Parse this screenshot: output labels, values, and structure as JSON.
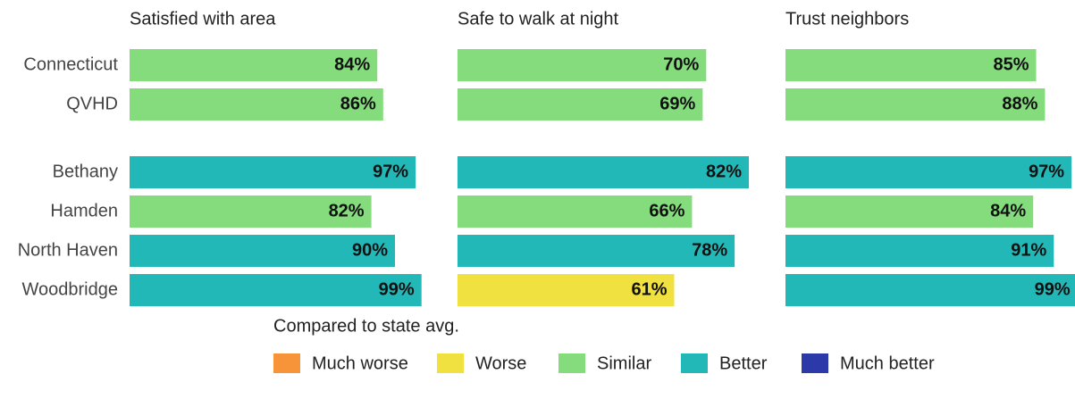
{
  "categories": [
    "Connecticut",
    "QVHD",
    "Bethany",
    "Hamden",
    "North Haven",
    "Woodbridge"
  ],
  "chart_data": [
    {
      "type": "bar",
      "title": "Satisfied with area",
      "values": [
        84,
        86,
        97,
        82,
        90,
        99
      ],
      "value_labels": [
        "84%",
        "86%",
        "97%",
        "82%",
        "90%",
        "99%"
      ],
      "colors": [
        "#84dc7c",
        "#84dc7c",
        "#22b8b8",
        "#84dc7c",
        "#22b8b8",
        "#22b8b8"
      ],
      "xlim": [
        0,
        100
      ]
    },
    {
      "type": "bar",
      "title": "Safe to walk at night",
      "values": [
        70,
        69,
        82,
        66,
        78,
        61
      ],
      "value_labels": [
        "70%",
        "69%",
        "82%",
        "66%",
        "78%",
        "61%"
      ],
      "colors": [
        "#84dc7c",
        "#84dc7c",
        "#22b8b8",
        "#84dc7c",
        "#22b8b8",
        "#f0e040"
      ],
      "xlim": [
        0,
        83
      ]
    },
    {
      "type": "bar",
      "title": "Trust neighbors",
      "values": [
        85,
        88,
        97,
        84,
        91,
        99
      ],
      "value_labels": [
        "85%",
        "88%",
        "97%",
        "84%",
        "91%",
        "99%"
      ],
      "colors": [
        "#84dc7c",
        "#84dc7c",
        "#22b8b8",
        "#84dc7c",
        "#22b8b8",
        "#22b8b8"
      ],
      "xlim": [
        0,
        100
      ]
    }
  ],
  "legend": {
    "title": "Compared to state avg.",
    "items": [
      {
        "name": "Much worse",
        "color": "#f7943a"
      },
      {
        "name": "Worse",
        "color": "#f0e040"
      },
      {
        "name": "Similar",
        "color": "#84dc7c"
      },
      {
        "name": "Better",
        "color": "#22b8b8"
      },
      {
        "name": "Much better",
        "color": "#2b3aa8"
      }
    ]
  }
}
